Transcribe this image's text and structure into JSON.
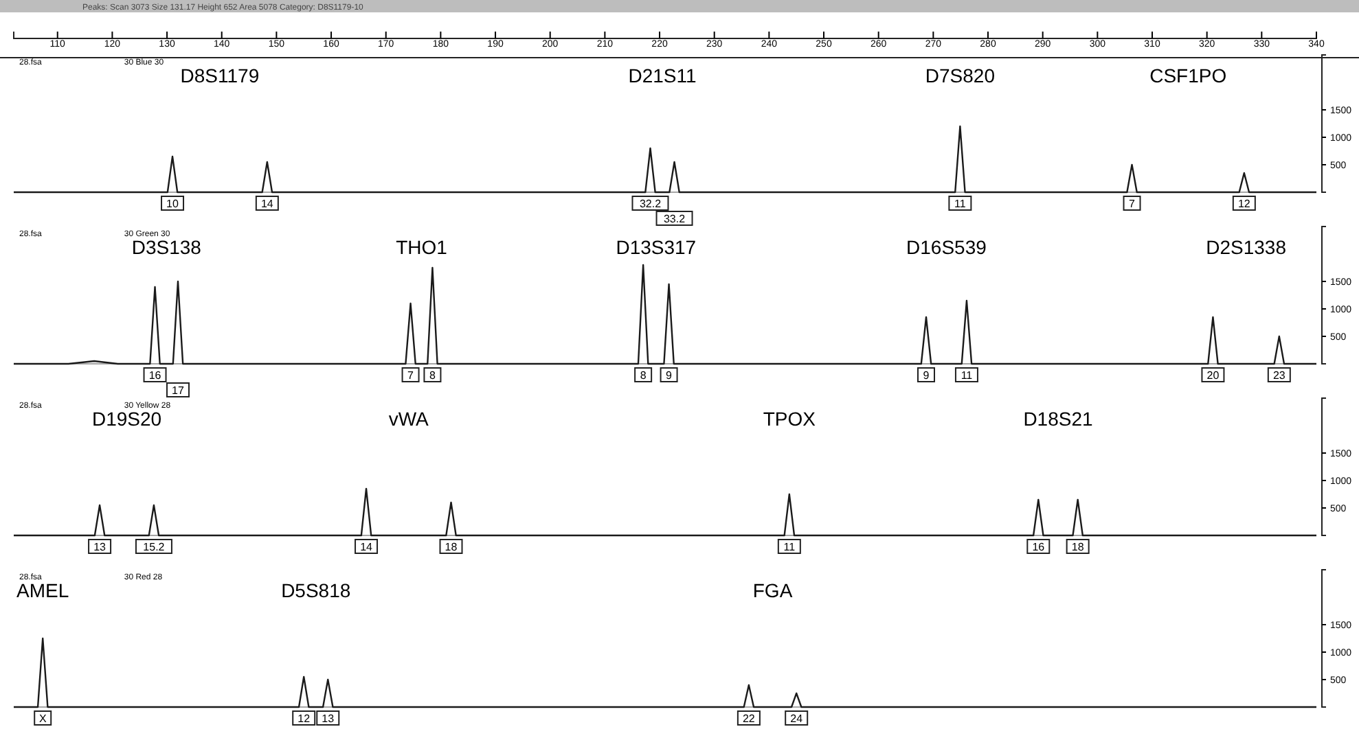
{
  "chart_data": [
    {
      "type": "line",
      "title": "Peaks: Scan 3073 Size 131.17 Height 652 Area 5078 Category: D8S1179-10",
      "xlim": [
        102,
        340
      ],
      "xticks": [
        110,
        120,
        130,
        140,
        150,
        160,
        170,
        180,
        190,
        200,
        210,
        220,
        230,
        240,
        250,
        260,
        270,
        280,
        290,
        300,
        310,
        320,
        330,
        340
      ],
      "ylim": [
        0,
        2500
      ],
      "yticks": [
        500,
        1000,
        1500
      ],
      "series": [
        {
          "color": "#1a1a1a",
          "x": [
            102,
            130.1,
            131.0,
            131.9,
            147.4,
            148.3,
            149.2,
            217.4,
            218.3,
            219.2,
            221.8,
            222.7,
            223.6,
            274.0,
            274.9,
            275.8,
            305.4,
            306.3,
            307.2,
            325.9,
            326.8,
            327.7,
            340
          ],
          "values": [
            0,
            0,
            650,
            0,
            0,
            550,
            0,
            0,
            800,
            0,
            0,
            550,
            0,
            0,
            1200,
            0,
            0,
            500,
            0,
            0,
            350,
            0,
            0
          ]
        }
      ],
      "annotations": [
        "28.fsa",
        "30 Blue 30",
        "D8S1179",
        "D21S11",
        "D7S820",
        "CSF1PO",
        {
          "text": "10",
          "x": 131.0,
          "y": 0
        },
        {
          "text": "14",
          "x": 148.3,
          "y": 0
        },
        {
          "text": "32.2",
          "x": 218.3,
          "y": 0
        },
        {
          "text": "33.2",
          "x": 222.7,
          "y": 0
        },
        {
          "text": "11",
          "x": 274.9,
          "y": 0
        },
        {
          "text": "7",
          "x": 306.3,
          "y": 0
        },
        {
          "text": "12",
          "x": 326.8,
          "y": 0
        }
      ]
    },
    {
      "type": "line",
      "tick_labels": "y",
      "xlim": [
        102,
        340
      ],
      "ylim": [
        0,
        2500
      ],
      "yticks": [
        500,
        1000,
        1500
      ],
      "series": [
        {
          "color": "#1a1a1a",
          "x": [
            102,
            112,
            116.7,
            121,
            126.9,
            127.8,
            128.7,
            131.1,
            132.0,
            132.9,
            173.6,
            174.5,
            175.4,
            177.6,
            178.5,
            179.4,
            216.1,
            217.0,
            217.9,
            220.8,
            221.7,
            222.6,
            267.8,
            268.7,
            269.6,
            275.2,
            276.1,
            277.0,
            320.2,
            321.1,
            322.0,
            332.3,
            333.2,
            334.1,
            340
          ],
          "values": [
            0,
            0,
            50,
            0,
            0,
            1400,
            0,
            0,
            1500,
            0,
            0,
            1100,
            0,
            0,
            1750,
            0,
            0,
            1800,
            0,
            0,
            1450,
            0,
            0,
            850,
            0,
            0,
            1150,
            0,
            0,
            850,
            0,
            0,
            500,
            0,
            0
          ]
        }
      ],
      "annotations": [
        "28.fsa",
        "30 Green 30",
        "D3S138",
        "THO1",
        "D13S317",
        "D16S539",
        "D2S1338",
        {
          "text": "16",
          "x": 127.8,
          "y": 0
        },
        {
          "text": "17",
          "x": 132.0,
          "y": 0
        },
        {
          "text": "7",
          "x": 174.5,
          "y": 0
        },
        {
          "text": "8",
          "x": 178.5,
          "y": 0
        },
        {
          "text": "8",
          "x": 217.0,
          "y": 0
        },
        {
          "text": "9",
          "x": 221.7,
          "y": 0
        },
        {
          "text": "9",
          "x": 268.7,
          "y": 0
        },
        {
          "text": "11",
          "x": 276.1,
          "y": 0
        },
        {
          "text": "20",
          "x": 321.1,
          "y": 0
        },
        {
          "text": "23",
          "x": 333.2,
          "y": 0
        }
      ]
    },
    {
      "type": "line",
      "tick_labels": "y",
      "xlim": [
        102,
        340
      ],
      "ylim": [
        0,
        2500
      ],
      "yticks": [
        500,
        1000,
        1500
      ],
      "series": [
        {
          "color": "#1a1a1a",
          "x": [
            102,
            116.8,
            117.7,
            118.6,
            126.7,
            127.6,
            128.5,
            165.5,
            166.4,
            167.3,
            181.0,
            181.9,
            182.8,
            242.8,
            243.7,
            244.6,
            288.3,
            289.2,
            290.1,
            295.5,
            296.4,
            297.3,
            340
          ],
          "values": [
            0,
            0,
            550,
            0,
            0,
            550,
            0,
            0,
            850,
            0,
            0,
            600,
            0,
            0,
            750,
            0,
            0,
            650,
            0,
            0,
            650,
            0,
            0
          ]
        }
      ],
      "annotations": [
        "28.fsa",
        "30 Yellow 28",
        "D19S20",
        "vWA",
        "TPOX",
        "D18S21",
        {
          "text": "13",
          "x": 117.7,
          "y": 0
        },
        {
          "text": "15.2",
          "x": 127.6,
          "y": 0
        },
        {
          "text": "14",
          "x": 166.4,
          "y": 0
        },
        {
          "text": "18",
          "x": 181.9,
          "y": 0
        },
        {
          "text": "11",
          "x": 243.7,
          "y": 0
        },
        {
          "text": "16",
          "x": 289.2,
          "y": 0
        },
        {
          "text": "18",
          "x": 296.4,
          "y": 0
        }
      ]
    },
    {
      "type": "line",
      "tick_labels": "y",
      "xlim": [
        102,
        340
      ],
      "ylim": [
        0,
        2500
      ],
      "yticks": [
        500,
        1000,
        1500
      ],
      "series": [
        {
          "color": "#1a1a1a",
          "x": [
            102,
            106.4,
            107.3,
            108.2,
            154.1,
            155.0,
            155.9,
            158.5,
            159.4,
            160.3,
            235.4,
            236.3,
            237.2,
            244.1,
            245.0,
            245.9,
            340
          ],
          "values": [
            0,
            0,
            1250,
            0,
            0,
            550,
            0,
            0,
            500,
            0,
            0,
            400,
            0,
            0,
            250,
            0,
            0
          ]
        }
      ],
      "annotations": [
        "28.fsa",
        "30 Red 28",
        "AMEL",
        "D5S818",
        "FGA",
        {
          "text": "X",
          "x": 107.3,
          "y": 0
        },
        {
          "text": "12",
          "x": 155.0,
          "y": 0
        },
        {
          "text": "13",
          "x": 159.4,
          "y": 0
        },
        {
          "text": "22",
          "x": 236.3,
          "y": 0
        },
        {
          "text": "24",
          "x": 245.0,
          "y": 0
        }
      ]
    }
  ]
}
